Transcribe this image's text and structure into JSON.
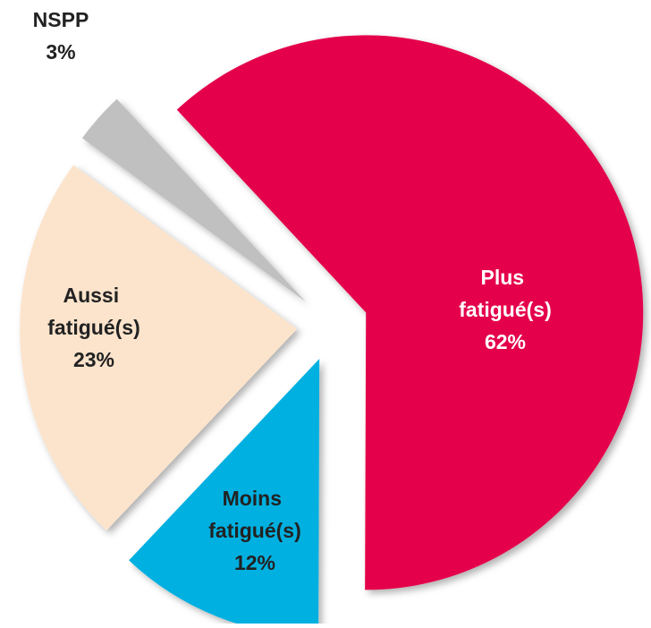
{
  "chart_data": {
    "type": "pie",
    "categories": [
      "Plus fatigué(s)",
      "Moins fatigué(s)",
      "Aussi fatigué(s)",
      "NSPP"
    ],
    "values": [
      62,
      12,
      23,
      3
    ],
    "value_labels": [
      "62%",
      "12%",
      "23%",
      "3%"
    ],
    "colors": [
      "#e4004b",
      "#00b0e0",
      "#fce4cc",
      "#c0c0c0"
    ]
  }
}
